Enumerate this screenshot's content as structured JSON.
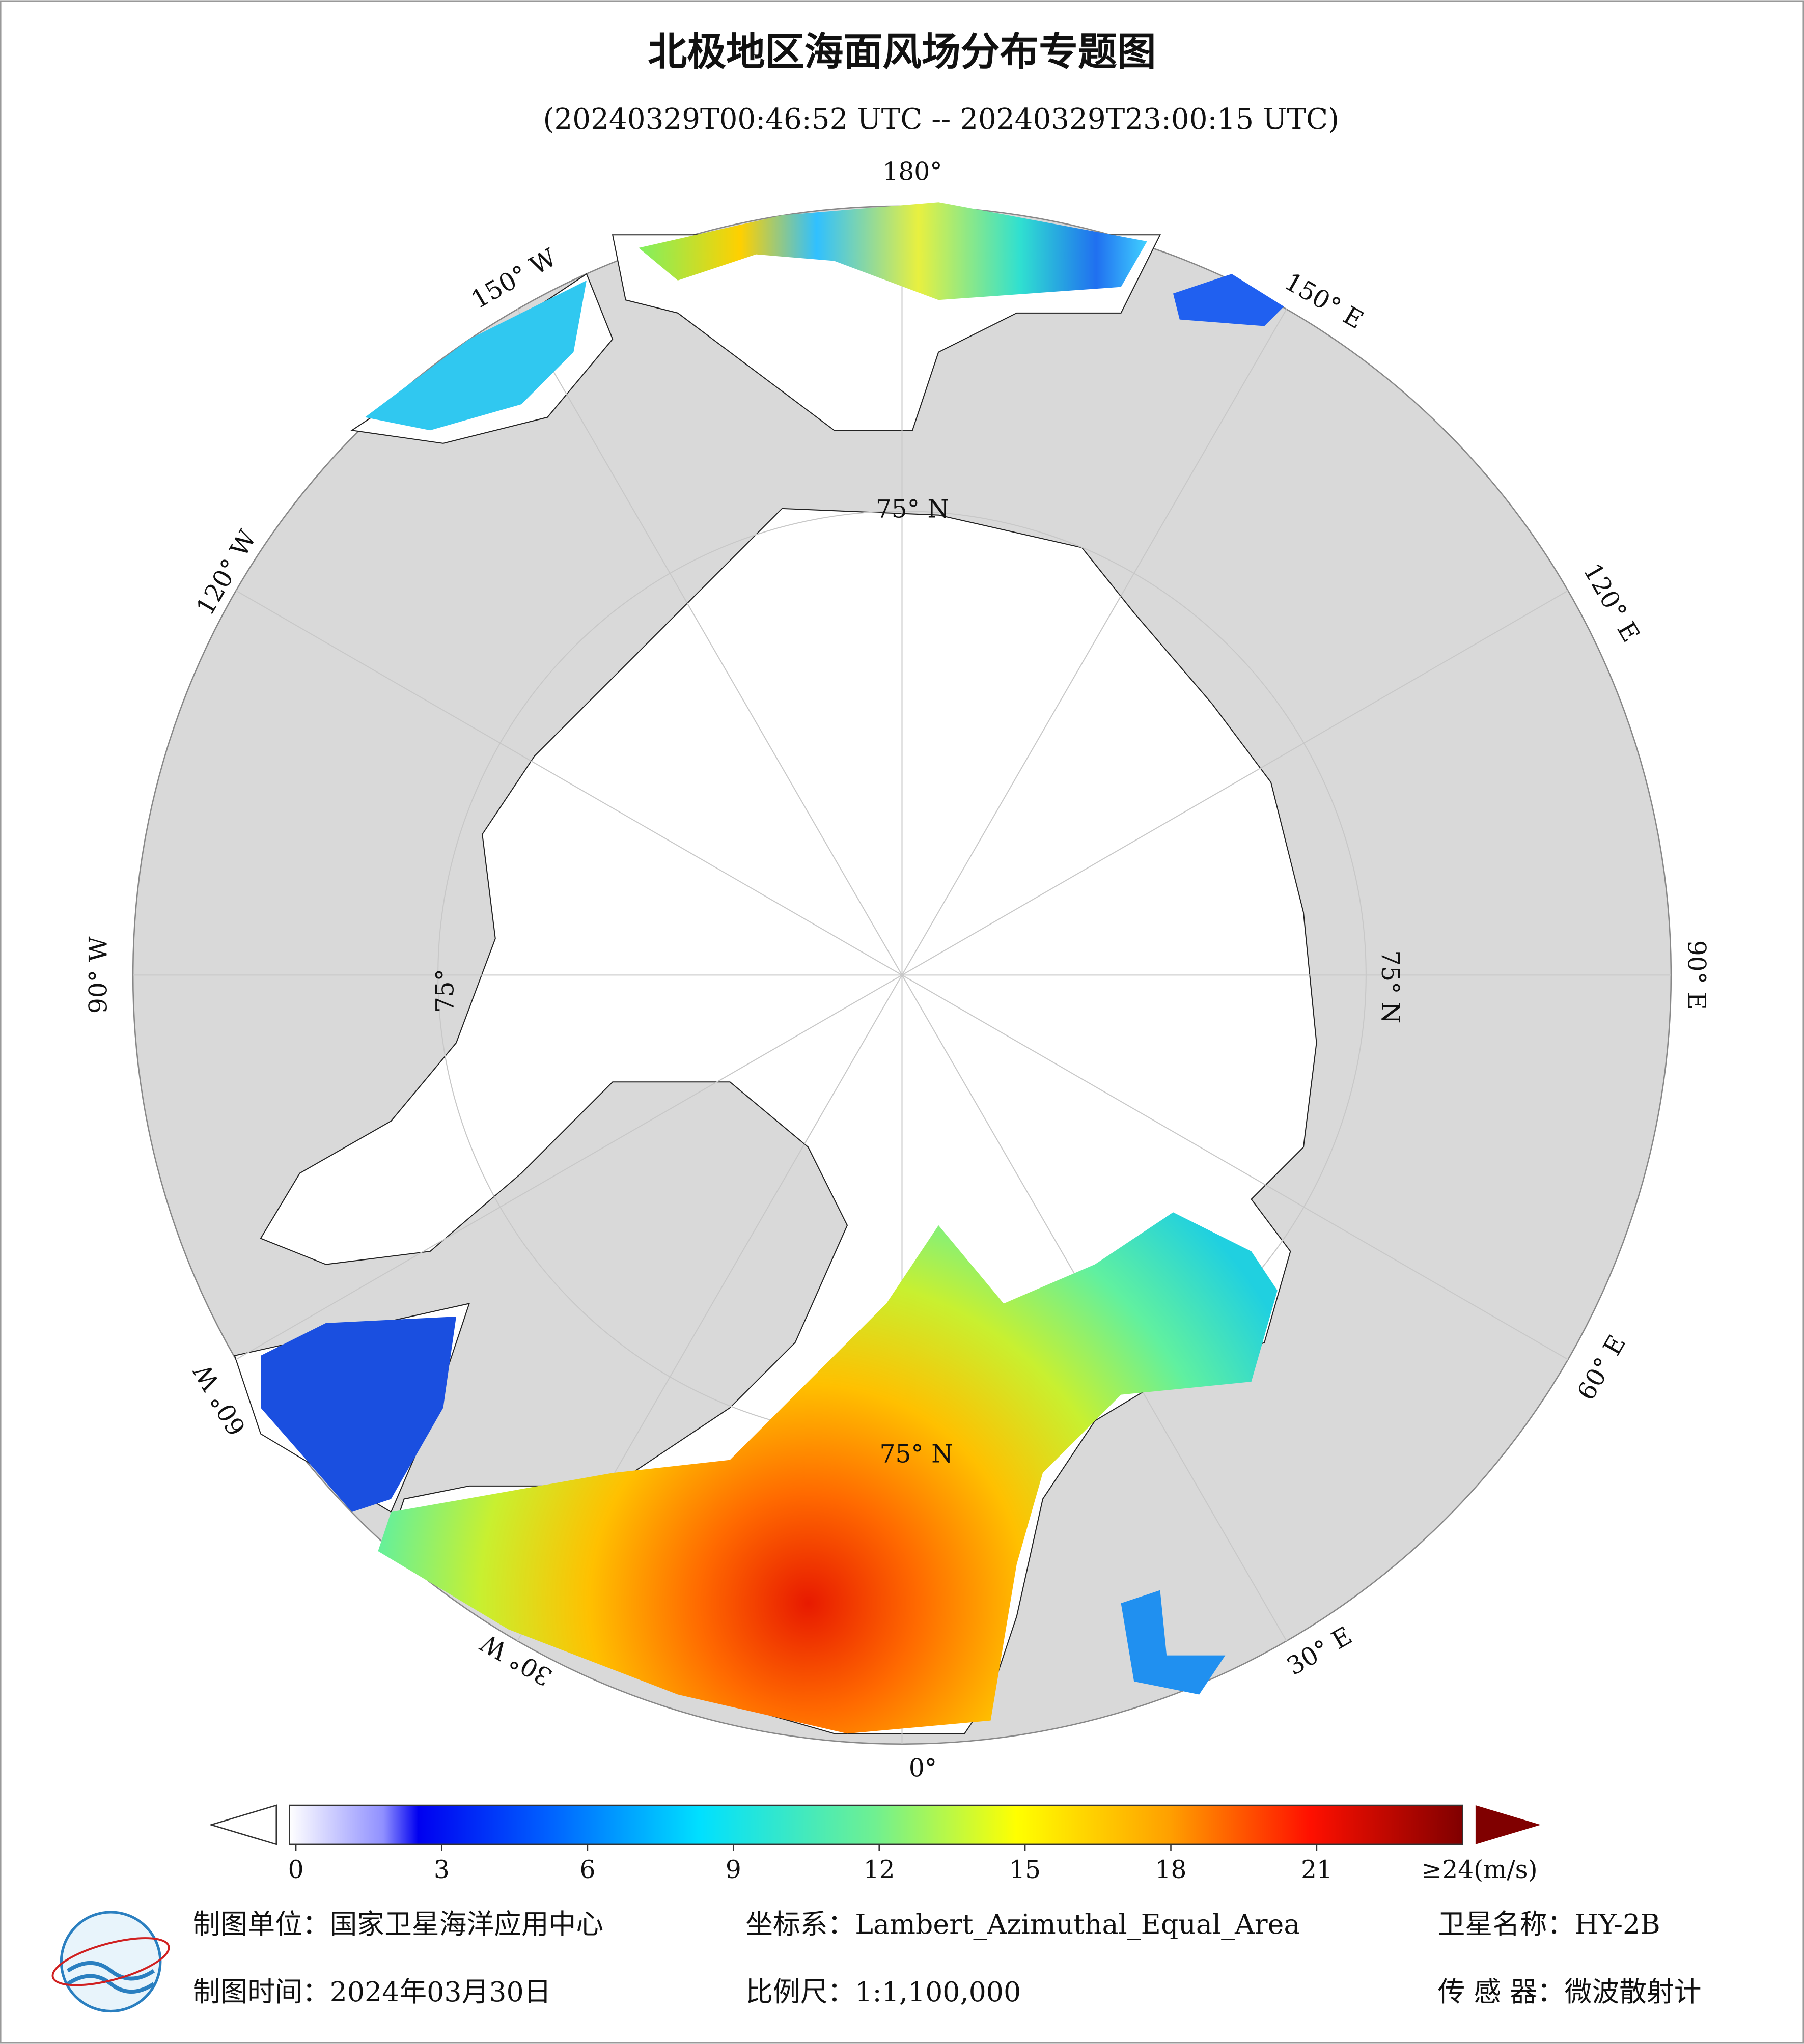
{
  "header": {
    "title": "北极地区海面风场分布专题图",
    "subtitle": "(20240329T00:46:52 UTC -- 20240329T23:00:15 UTC)"
  },
  "map": {
    "longitude_labels": [
      "180°",
      "150° E",
      "120° E",
      "90° E",
      "60° E",
      "30° E",
      "0°",
      "30° W",
      "60° W",
      "90° W",
      "120° W",
      "150° W"
    ],
    "latitude_labels": [
      "75° N",
      "75° N",
      "75°",
      "75° N"
    ]
  },
  "colorbar": {
    "range": [
      0,
      24
    ],
    "ticks": [
      0,
      3,
      6,
      9,
      12,
      15,
      18,
      21
    ],
    "max_label": "≥24(m/s)"
  },
  "footer": {
    "unit": "制图单位：国家卫星海洋应用中心",
    "projection": "坐标系：Lambert_Azimuthal_Equal_Area",
    "satellite": "卫星名称：HY-2B",
    "date": "制图时间：2024年03月30日",
    "scale": "比例尺：1:1,100,000",
    "sensor": "传 感 器：微波散射计"
  }
}
